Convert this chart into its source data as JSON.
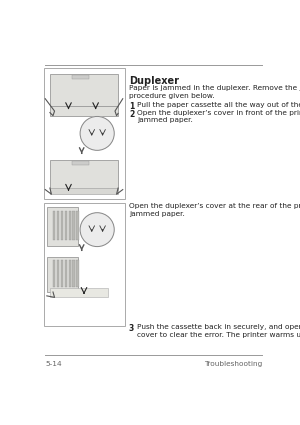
{
  "page_number": "5-14",
  "page_label": "Troubleshooting",
  "title": "Duplexer",
  "intro_text": "Paper is jammed in the duplexer. Remove the jammed paper using the\nprocedure given below.",
  "steps": [
    {
      "num": "1",
      "text": "Pull the paper cassette all the way out of the printer."
    },
    {
      "num": "2",
      "text": "Open the duplexer’s cover in front of the printer and remove any\njammed paper."
    }
  ],
  "mid_text": "Open the duplexer’s cover at the rear of the printer and remove any\njammed paper.",
  "step3_num": "3",
  "step3_text": "Push the cassette back in securely, and open and close the top\ncover to clear the error. The printer warms up and resumes printing.",
  "text_color": "#222222",
  "footer_color": "#666666",
  "line_color": "#999999",
  "box_edge_color": "#aaaaaa",
  "box_fill": "#f0f0ec"
}
